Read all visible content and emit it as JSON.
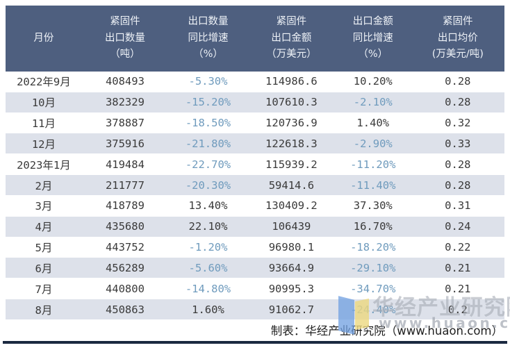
{
  "colors": {
    "header_bg": "#4e5f7f",
    "header_text": "#eef2f7",
    "row_alt_bg": "#dde1ea",
    "text": "#3a3a3a",
    "negative": "#6f9bbd",
    "bottom_bar": "#1b2940",
    "watermark_blue": "#6f9fe0",
    "watermark_yellow": "#ecd87f"
  },
  "chart_data": {
    "type": "table",
    "columns": [
      "月份",
      "紧固件\n出口数量\n（吨）",
      "出口数量\n同比增速\n（%）",
      "紧固件\n出口金额\n（万美元）",
      "出口金额\n同比增速\n（%）",
      "紧固件\n出口均价\n(万美元/吨)"
    ],
    "rows": [
      [
        "2022年9月",
        "408493",
        "-5.30%",
        "114986.6",
        "10.20%",
        "0.28"
      ],
      [
        "10月",
        "382329",
        "-15.20%",
        "107610.3",
        "-2.10%",
        "0.28"
      ],
      [
        "11月",
        "378887",
        "-18.50%",
        "120736.9",
        "1.40%",
        "0.32"
      ],
      [
        "12月",
        "375916",
        "-21.80%",
        "122618.3",
        "-2.90%",
        "0.33"
      ],
      [
        "2023年1月",
        "419484",
        "-22.70%",
        "115939.2",
        "-11.20%",
        "0.28"
      ],
      [
        "2月",
        "211777",
        "-20.30%",
        "59414.6",
        "-11.40%",
        "0.28"
      ],
      [
        "3月",
        "418789",
        "13.40%",
        "130409.2",
        "37.30%",
        "0.31"
      ],
      [
        "4月",
        "435680",
        "22.10%",
        "106439",
        "16.70%",
        "0.24"
      ],
      [
        "5月",
        "443752",
        "-1.20%",
        "96980.1",
        "-18.20%",
        "0.22"
      ],
      [
        "6月",
        "456289",
        "-5.60%",
        "93664.9",
        "-29.10%",
        "0.21"
      ],
      [
        "7月",
        "440800",
        "-14.80%",
        "90995.3",
        "-34.70%",
        "0.21"
      ],
      [
        "8月",
        "450863",
        "1.60%",
        "91062.7",
        "-24.40%",
        "0.2"
      ]
    ]
  },
  "footer": {
    "credit": "制表：华经产业研究院（www.huaon.com）"
  },
  "watermark": {
    "org": "华经产业研究院",
    "site": "www.huaon.com"
  }
}
